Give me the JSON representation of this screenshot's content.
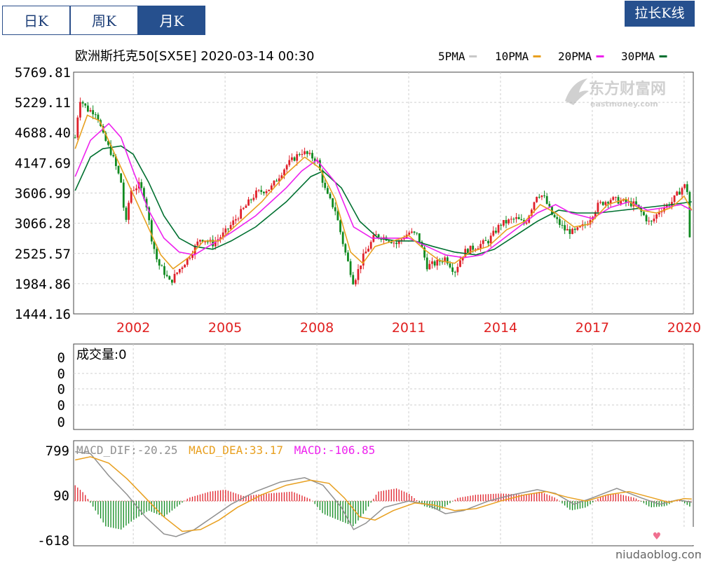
{
  "tabs": [
    {
      "label": "日K",
      "active": false
    },
    {
      "label": "周K",
      "active": false
    },
    {
      "label": "月K",
      "active": true
    }
  ],
  "stretch_button": "拉长K线",
  "header": {
    "title": "欧洲斯托克50[SX5E] 2020-03-14 00:30",
    "ma_legend": [
      {
        "label": "5PMA",
        "color": "#c8c8c8"
      },
      {
        "label": "10PMA",
        "color": "#e8a020"
      },
      {
        "label": "20PMA",
        "color": "#ee22ee"
      },
      {
        "label": "30PMA",
        "color": "#007030"
      }
    ]
  },
  "logo": {
    "cn": "东方财富网",
    "en": "eastmoney.com"
  },
  "watermark": "niudaoblog.com",
  "volume_panel": {
    "title": "成交量:0",
    "ticks": [
      "0",
      "0",
      "0",
      "0",
      "0"
    ]
  },
  "macd_panel": {
    "dif_text": "MACD_DIF:-20.25",
    "dea_text": "MACD_DEA:33.17",
    "macd_text": "MACD:-106.85",
    "dif_color": "#909090",
    "dea_color": "#e8a020",
    "macd_color": "#ee22ee",
    "y_ticks": [
      "799",
      "90",
      "-618"
    ],
    "y_tick_values": [
      799,
      90,
      -618
    ],
    "ylim": [
      -618,
      799
    ]
  },
  "chart_data": {
    "type": "candlestick",
    "x_tick_labels": [
      "2002",
      "2005",
      "2008",
      "2011",
      "2014",
      "2017",
      "2020"
    ],
    "x_tick_years": [
      2002,
      2005,
      2008,
      2011,
      2014,
      2017,
      2020
    ],
    "x_range": [
      2000.05,
      2020.3
    ],
    "y_tick_labels": [
      "5769.81",
      "5229.11",
      "4688.40",
      "4147.69",
      "3606.99",
      "3066.28",
      "2525.57",
      "1984.86",
      "1444.16"
    ],
    "ylim": [
      1444.16,
      5769.81
    ],
    "price_path": [
      [
        2000.1,
        4600
      ],
      [
        2000.25,
        5300
      ],
      [
        2000.5,
        5100
      ],
      [
        2000.8,
        5050
      ],
      [
        2001.0,
        4650
      ],
      [
        2001.3,
        4300
      ],
      [
        2001.6,
        3800
      ],
      [
        2001.75,
        3000
      ],
      [
        2001.9,
        3650
      ],
      [
        2002.2,
        3750
      ],
      [
        2002.4,
        3500
      ],
      [
        2002.6,
        2800
      ],
      [
        2002.8,
        2350
      ],
      [
        2003.0,
        2200
      ],
      [
        2003.2,
        2000
      ],
      [
        2003.45,
        2200
      ],
      [
        2003.8,
        2450
      ],
      [
        2004.2,
        2800
      ],
      [
        2004.6,
        2700
      ],
      [
        2005.0,
        2900
      ],
      [
        2005.5,
        3250
      ],
      [
        2006.0,
        3600
      ],
      [
        2006.5,
        3700
      ],
      [
        2007.0,
        4100
      ],
      [
        2007.5,
        4350
      ],
      [
        2008.0,
        4200
      ],
      [
        2008.3,
        3600
      ],
      [
        2008.6,
        3300
      ],
      [
        2008.9,
        2600
      ],
      [
        2009.2,
        2000
      ],
      [
        2009.5,
        2450
      ],
      [
        2009.9,
        2850
      ],
      [
        2010.3,
        2800
      ],
      [
        2010.6,
        2700
      ],
      [
        2011.0,
        2900
      ],
      [
        2011.3,
        2850
      ],
      [
        2011.6,
        2300
      ],
      [
        2011.9,
        2350
      ],
      [
        2012.2,
        2450
      ],
      [
        2012.5,
        2200
      ],
      [
        2012.8,
        2550
      ],
      [
        2013.2,
        2650
      ],
      [
        2013.6,
        2750
      ],
      [
        2014.0,
        3050
      ],
      [
        2014.5,
        3150
      ],
      [
        2014.8,
        3050
      ],
      [
        2015.2,
        3600
      ],
      [
        2015.4,
        3550
      ],
      [
        2015.7,
        3200
      ],
      [
        2016.1,
        2950
      ],
      [
        2016.4,
        2900
      ],
      [
        2016.8,
        3050
      ],
      [
        2017.2,
        3400
      ],
      [
        2017.6,
        3500
      ],
      [
        2018.0,
        3450
      ],
      [
        2018.4,
        3400
      ],
      [
        2018.9,
        3050
      ],
      [
        2019.2,
        3300
      ],
      [
        2019.6,
        3450
      ],
      [
        2020.0,
        3750
      ],
      [
        2020.1,
        3650
      ],
      [
        2020.2,
        2650
      ]
    ],
    "ma_series": [
      {
        "name": "30PMA",
        "color": "#007030",
        "points": [
          [
            2000.1,
            3650
          ],
          [
            2000.6,
            4250
          ],
          [
            2001.0,
            4400
          ],
          [
            2001.6,
            4450
          ],
          [
            2002.0,
            4300
          ],
          [
            2002.5,
            3800
          ],
          [
            2003.0,
            3200
          ],
          [
            2003.5,
            2800
          ],
          [
            2004.0,
            2650
          ],
          [
            2004.6,
            2600
          ],
          [
            2005.2,
            2750
          ],
          [
            2006.0,
            3000
          ],
          [
            2007.0,
            3450
          ],
          [
            2007.8,
            3900
          ],
          [
            2008.2,
            4000
          ],
          [
            2008.8,
            3700
          ],
          [
            2009.4,
            3100
          ],
          [
            2010.0,
            2800
          ],
          [
            2010.6,
            2750
          ],
          [
            2011.2,
            2750
          ],
          [
            2011.8,
            2650
          ],
          [
            2012.5,
            2550
          ],
          [
            2013.2,
            2500
          ],
          [
            2013.8,
            2600
          ],
          [
            2014.5,
            2850
          ],
          [
            2015.2,
            3100
          ],
          [
            2015.9,
            3300
          ],
          [
            2016.5,
            3250
          ],
          [
            2017.2,
            3250
          ],
          [
            2018.0,
            3300
          ],
          [
            2018.8,
            3350
          ],
          [
            2019.6,
            3400
          ],
          [
            2020.25,
            3450
          ]
        ]
      },
      {
        "name": "20PMA",
        "color": "#ee22ee",
        "points": [
          [
            2000.1,
            3900
          ],
          [
            2000.6,
            4550
          ],
          [
            2001.2,
            4850
          ],
          [
            2001.6,
            4600
          ],
          [
            2002.0,
            4000
          ],
          [
            2002.5,
            3300
          ],
          [
            2003.0,
            2800
          ],
          [
            2003.5,
            2550
          ],
          [
            2004.0,
            2500
          ],
          [
            2004.6,
            2700
          ],
          [
            2005.2,
            2900
          ],
          [
            2006.0,
            3200
          ],
          [
            2007.0,
            3700
          ],
          [
            2007.5,
            4000
          ],
          [
            2008.0,
            4200
          ],
          [
            2008.6,
            3800
          ],
          [
            2009.2,
            3000
          ],
          [
            2009.8,
            2800
          ],
          [
            2010.4,
            2800
          ],
          [
            2011.0,
            2800
          ],
          [
            2011.6,
            2650
          ],
          [
            2012.2,
            2500
          ],
          [
            2012.8,
            2450
          ],
          [
            2013.4,
            2500
          ],
          [
            2014.0,
            2750
          ],
          [
            2014.6,
            3000
          ],
          [
            2015.2,
            3250
          ],
          [
            2015.8,
            3400
          ],
          [
            2016.3,
            3250
          ],
          [
            2017.0,
            3150
          ],
          [
            2017.6,
            3350
          ],
          [
            2018.2,
            3450
          ],
          [
            2018.8,
            3300
          ],
          [
            2019.4,
            3350
          ],
          [
            2019.9,
            3400
          ],
          [
            2020.25,
            3300
          ]
        ]
      },
      {
        "name": "10PMA",
        "color": "#e8a020",
        "points": [
          [
            2000.1,
            4400
          ],
          [
            2000.5,
            5000
          ],
          [
            2000.9,
            4900
          ],
          [
            2001.4,
            4300
          ],
          [
            2001.9,
            3700
          ],
          [
            2002.4,
            3100
          ],
          [
            2002.9,
            2500
          ],
          [
            2003.3,
            2250
          ],
          [
            2003.8,
            2450
          ],
          [
            2004.3,
            2750
          ],
          [
            2004.8,
            2750
          ],
          [
            2005.4,
            3050
          ],
          [
            2006.2,
            3450
          ],
          [
            2007.0,
            3950
          ],
          [
            2007.6,
            4250
          ],
          [
            2008.1,
            4050
          ],
          [
            2008.6,
            3500
          ],
          [
            2009.1,
            2550
          ],
          [
            2009.5,
            2350
          ],
          [
            2009.9,
            2650
          ],
          [
            2010.5,
            2750
          ],
          [
            2011.0,
            2850
          ],
          [
            2011.5,
            2600
          ],
          [
            2012.0,
            2400
          ],
          [
            2012.5,
            2350
          ],
          [
            2013.0,
            2550
          ],
          [
            2013.6,
            2650
          ],
          [
            2014.2,
            2950
          ],
          [
            2014.8,
            3100
          ],
          [
            2015.3,
            3400
          ],
          [
            2015.8,
            3250
          ],
          [
            2016.4,
            3000
          ],
          [
            2016.9,
            3050
          ],
          [
            2017.5,
            3400
          ],
          [
            2018.1,
            3500
          ],
          [
            2018.6,
            3300
          ],
          [
            2019.1,
            3250
          ],
          [
            2019.6,
            3350
          ],
          [
            2020.0,
            3550
          ],
          [
            2020.25,
            3300
          ]
        ]
      }
    ],
    "macd": {
      "dif_points": [
        [
          2000.1,
          780
        ],
        [
          2000.6,
          750
        ],
        [
          2001.2,
          400
        ],
        [
          2001.8,
          100
        ],
        [
          2002.4,
          -250
        ],
        [
          2003.0,
          -520
        ],
        [
          2003.4,
          -560
        ],
        [
          2004.0,
          -450
        ],
        [
          2004.6,
          -250
        ],
        [
          2005.2,
          -50
        ],
        [
          2006.0,
          150
        ],
        [
          2006.8,
          300
        ],
        [
          2007.6,
          370
        ],
        [
          2008.2,
          250
        ],
        [
          2008.8,
          -100
        ],
        [
          2009.2,
          -450
        ],
        [
          2009.6,
          -350
        ],
        [
          2010.2,
          -100
        ],
        [
          2011.0,
          0
        ],
        [
          2011.6,
          -50
        ],
        [
          2012.2,
          -200
        ],
        [
          2012.8,
          -150
        ],
        [
          2013.6,
          0
        ],
        [
          2014.4,
          100
        ],
        [
          2015.2,
          180
        ],
        [
          2015.8,
          120
        ],
        [
          2016.4,
          -50
        ],
        [
          2017.0,
          50
        ],
        [
          2017.8,
          200
        ],
        [
          2018.6,
          50
        ],
        [
          2019.2,
          -50
        ],
        [
          2019.8,
          20
        ],
        [
          2020.25,
          -20
        ]
      ],
      "dea_points": [
        [
          2000.1,
          650
        ],
        [
          2000.6,
          700
        ],
        [
          2001.2,
          600
        ],
        [
          2001.8,
          350
        ],
        [
          2002.4,
          50
        ],
        [
          2003.0,
          -250
        ],
        [
          2003.6,
          -480
        ],
        [
          2004.2,
          -450
        ],
        [
          2004.8,
          -300
        ],
        [
          2005.4,
          -100
        ],
        [
          2006.2,
          100
        ],
        [
          2007.0,
          250
        ],
        [
          2007.8,
          330
        ],
        [
          2008.4,
          280
        ],
        [
          2008.9,
          50
        ],
        [
          2009.4,
          -250
        ],
        [
          2009.9,
          -300
        ],
        [
          2010.5,
          -150
        ],
        [
          2011.2,
          -30
        ],
        [
          2011.8,
          -60
        ],
        [
          2012.5,
          -150
        ],
        [
          2013.2,
          -120
        ],
        [
          2014.0,
          0
        ],
        [
          2014.8,
          100
        ],
        [
          2015.5,
          150
        ],
        [
          2016.2,
          60
        ],
        [
          2016.8,
          0
        ],
        [
          2017.5,
          100
        ],
        [
          2018.2,
          150
        ],
        [
          2018.9,
          60
        ],
        [
          2019.5,
          -20
        ],
        [
          2020.0,
          40
        ],
        [
          2020.25,
          33
        ]
      ],
      "hist_path": [
        [
          2000.1,
          250
        ],
        [
          2000.4,
          120
        ],
        [
          2000.7,
          -100
        ],
        [
          2001.1,
          -400
        ],
        [
          2001.6,
          -450
        ],
        [
          2002.0,
          -300
        ],
        [
          2002.5,
          -150
        ],
        [
          2003.0,
          -250
        ],
        [
          2003.4,
          -100
        ],
        [
          2003.8,
          50
        ],
        [
          2004.5,
          150
        ],
        [
          2005.0,
          180
        ],
        [
          2005.6,
          80
        ],
        [
          2006.4,
          120
        ],
        [
          2007.2,
          150
        ],
        [
          2007.8,
          30
        ],
        [
          2008.2,
          -200
        ],
        [
          2008.7,
          -300
        ],
        [
          2009.2,
          -400
        ],
        [
          2009.6,
          -150
        ],
        [
          2010.0,
          150
        ],
        [
          2010.6,
          200
        ],
        [
          2011.0,
          120
        ],
        [
          2011.5,
          -80
        ],
        [
          2012.0,
          -150
        ],
        [
          2012.6,
          50
        ],
        [
          2013.2,
          100
        ],
        [
          2014.0,
          120
        ],
        [
          2014.8,
          100
        ],
        [
          2015.3,
          150
        ],
        [
          2015.8,
          50
        ],
        [
          2016.3,
          -150
        ],
        [
          2016.8,
          -100
        ],
        [
          2017.3,
          80
        ],
        [
          2017.8,
          120
        ],
        [
          2018.4,
          50
        ],
        [
          2018.9,
          -100
        ],
        [
          2019.4,
          -80
        ],
        [
          2019.8,
          30
        ],
        [
          2020.25,
          -107
        ]
      ]
    }
  }
}
